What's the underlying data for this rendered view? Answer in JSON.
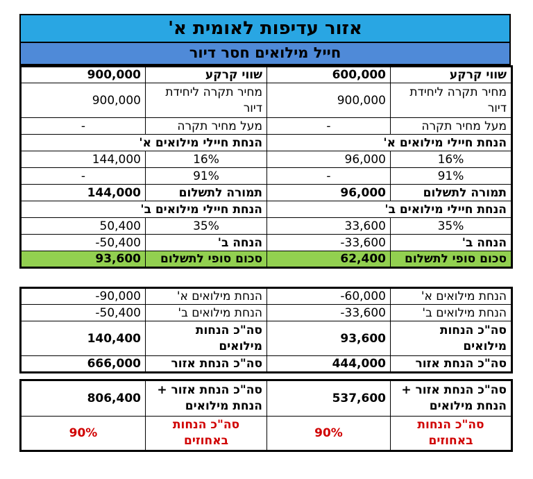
{
  "title": "אזור עדיפות לאומית א'",
  "subtitle": "חייל מילואים חסר דיור",
  "right": {
    "land_value_label": "שווי קרקע",
    "land_value": "600,000",
    "ceiling_label": "מחיר תקרה ליחידת דיור",
    "ceiling_value": "900,000",
    "above_label": "מעל מחיר תקרה",
    "above_value": "-",
    "disc_a_header": "הנחת חיילי מילואים א'",
    "disc_a_pct": "16%",
    "disc_a_value": "96,000",
    "pct91": "91%",
    "pct91_value": "-",
    "pay_label": "תמורה לתשלום",
    "pay_value": "96,000",
    "disc_b_header": "הנחת חיילי מילואים ב'",
    "disc_b_pct": "35%",
    "disc_b_value": "33,600",
    "disc_b_label": "הנחה ב'",
    "disc_b_neg": "-33,600",
    "final_label": "סכום סופי לתשלום",
    "final_value": "62,400",
    "sum_a_label": "הנחת מילואים א'",
    "sum_a_value": "-60,000",
    "sum_b_label": "הנחת מילואים ב'",
    "sum_b_value": "-33,600",
    "total_res_label": "סה\"כ הנחות מילואים",
    "total_res_value": "93,600",
    "area_label": "סה\"כ הנחת אזור",
    "area_value": "444,000",
    "area_plus_label": "סה\"כ הנחת אזור + הנחת מילואים",
    "area_plus_value": "537,600",
    "pct_total_label": "סה\"כ הנחות באחוזים",
    "pct_total_value": "90%"
  },
  "left": {
    "land_value_label": "שווי קרקע",
    "land_value": "900,000",
    "ceiling_label": "מחיר תקרה ליחידת דיור",
    "ceiling_value": "900,000",
    "above_label": "מעל מחיר תקרה",
    "above_value": "-",
    "disc_a_header": "הנחת חיילי מילואים א'",
    "disc_a_pct": "16%",
    "disc_a_value": "144,000",
    "pct91": "91%",
    "pct91_value": "-",
    "pay_label": "תמורה לתשלום",
    "pay_value": "144,000",
    "disc_b_header": "הנחת חיילי מילואים ב'",
    "disc_b_pct": "35%",
    "disc_b_value": "50,400",
    "disc_b_label": "הנחה ב'",
    "disc_b_neg": "-50,400",
    "final_label": "סכום סופי לתשלום",
    "final_value": "93,600",
    "sum_a_label": "הנחת מילואים א'",
    "sum_a_value": "-90,000",
    "sum_b_label": "הנחת מילואים ב'",
    "sum_b_value": "-50,400",
    "total_res_label": "סה\"כ הנחות מילואים",
    "total_res_value": "140,400",
    "area_label": "סה\"כ הנחת אזור",
    "area_value": "666,000",
    "area_plus_label": "סה\"כ הנחת אזור + הנחת מילואים",
    "area_plus_value": "806,400",
    "pct_total_label": "סה\"כ הנחות באחוזים",
    "pct_total_value": "90%"
  },
  "colors": {
    "title_bg": "#29a6e3",
    "subtitle_bg": "#4f8ad8",
    "final_bg": "#92d050",
    "pct_red": "#d00000"
  }
}
